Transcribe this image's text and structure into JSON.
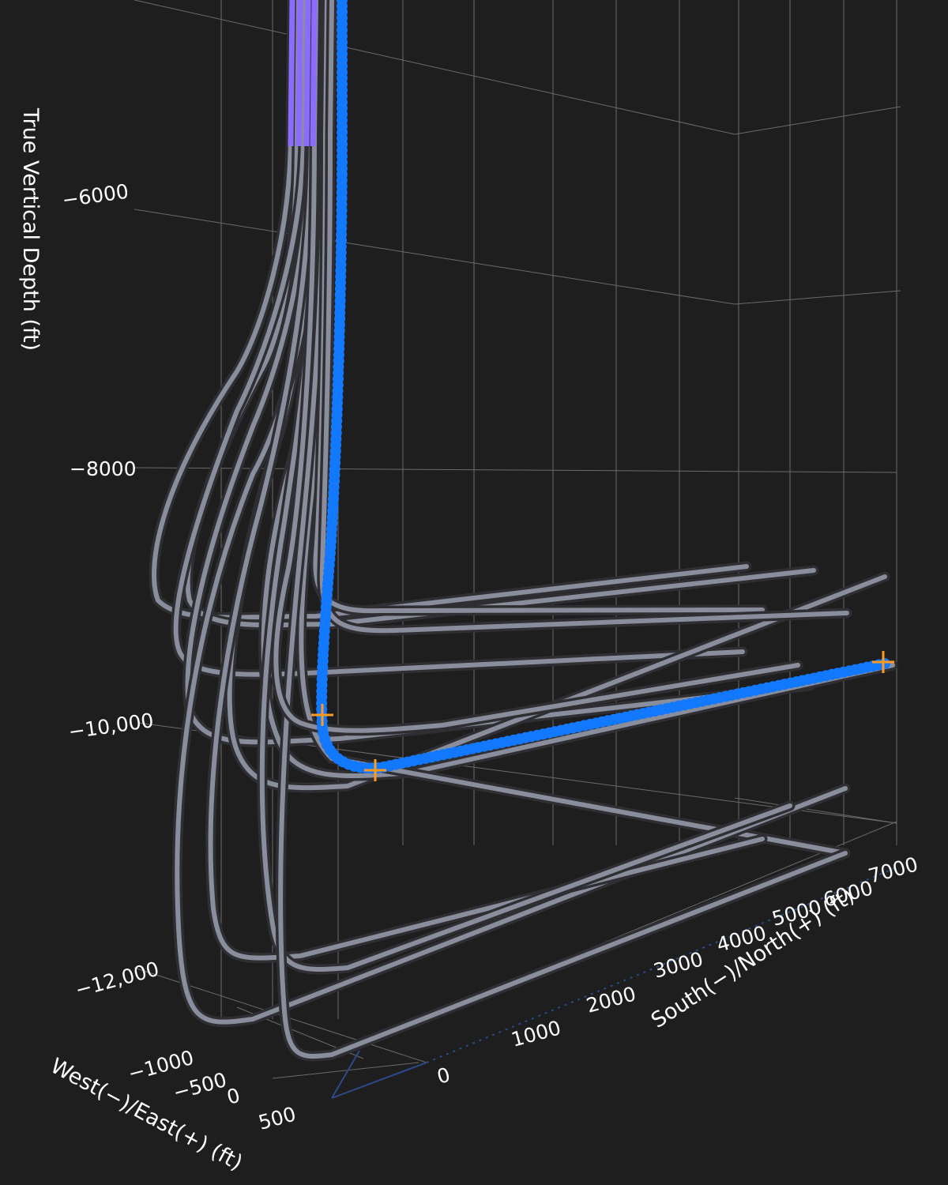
{
  "chart_data": {
    "type": "scatter",
    "dimensions": "3d",
    "z_axis": {
      "title": "True Vertical Depth (ft)",
      "ticks": [
        "−6000",
        "−8000",
        "−10,000",
        "−12,000"
      ]
    },
    "y_axis": {
      "title": "South(−)/North(+) (ft)",
      "ticks": [
        "0",
        "1000",
        "2000",
        "3000",
        "4000",
        "5000",
        "6000",
        "7000"
      ]
    },
    "x_axis": {
      "title": "West(−)/East(+) (ft)",
      "ticks": [
        "−1000",
        "−500",
        "0",
        "500"
      ]
    },
    "series": [
      {
        "role": "selected-well",
        "color": "#1279ff",
        "marker": "circle",
        "points_tvd_ns_ew": [
          [
            -4800,
            0,
            0
          ],
          [
            -6000,
            0,
            0
          ],
          [
            -8000,
            0,
            -50
          ],
          [
            -9600,
            0,
            -80
          ],
          [
            -9950,
            0,
            -60
          ],
          [
            -10200,
            700,
            40
          ],
          [
            -10250,
            1500,
            60
          ],
          [
            -10100,
            7000,
            80
          ]
        ]
      },
      {
        "role": "offset-wells",
        "color": "#8a8d9b",
        "count": 14,
        "landing_tvd_ft": [
          -9200,
          -9250,
          -9300,
          -9400,
          -9500,
          -9550,
          -9650,
          -9750,
          -9850,
          -10100,
          -11200,
          -11300,
          -11600,
          -11700
        ],
        "lateral_end_ns_ft": 7000
      }
    ],
    "highlights": [
      {
        "color": "#ff0000",
        "tvd_range": [
          -4800,
          -5600
        ]
      },
      {
        "color": "#8b6cff",
        "tvd_range": [
          -4800,
          -5700
        ]
      }
    ],
    "markers": {
      "color": "#ff9a1f",
      "shape": "cross",
      "tvd_ft": [
        -9950,
        -10250,
        -10100
      ]
    }
  }
}
